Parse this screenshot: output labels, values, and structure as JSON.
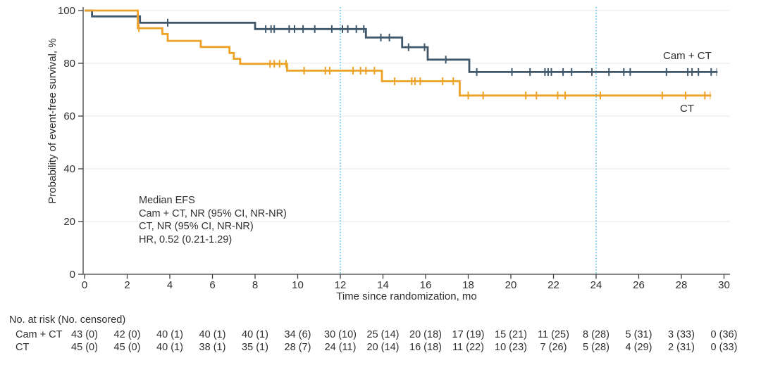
{
  "colors": {
    "cam_ct": "#41586B",
    "ct": "#EDA226",
    "milestone_line": "#4AC0E8",
    "grid": "#E8E8E8",
    "axis": "#3F3F3F",
    "text": "#2F2F2F"
  },
  "chart_data": {
    "type": "line",
    "subtype": "kaplan-meier-step",
    "title": "",
    "xlabel": "Time since randomization, mo",
    "ylabel": "Probability of event-free survival, %",
    "xlim": [
      0,
      30
    ],
    "ylim": [
      0,
      100
    ],
    "xticks": [
      0,
      2,
      4,
      6,
      8,
      10,
      12,
      14,
      16,
      18,
      20,
      22,
      24,
      26,
      28,
      30
    ],
    "yticks": [
      0,
      20,
      40,
      60,
      80,
      100
    ],
    "grid_y": [
      20,
      40,
      60,
      80,
      100
    ],
    "milestone_x": [
      12,
      24
    ],
    "legend_position": "end-of-line labels",
    "series": [
      {
        "name": "Cam + CT",
        "color": "#41586B",
        "steps": [
          [
            0,
            100
          ],
          [
            0.35,
            97.8
          ],
          [
            2.6,
            95.4
          ],
          [
            8.0,
            93.0
          ],
          [
            13.2,
            89.8
          ],
          [
            14.9,
            86.1
          ],
          [
            16.1,
            81.4
          ],
          [
            18.05,
            76.7
          ]
        ],
        "end_t": 29.7,
        "censor_t": [
          3.9,
          8.5,
          8.75,
          8.9,
          9.6,
          9.85,
          10.25,
          10.8,
          11.6,
          12.1,
          12.35,
          12.75,
          13.1,
          13.9,
          14.3,
          15.2,
          15.95,
          16.95,
          18.4,
          20.05,
          20.9,
          21.6,
          21.75,
          21.9,
          22.45,
          22.85,
          23.8,
          24.6,
          25.3,
          25.6,
          27.3,
          28.3,
          28.5,
          28.8,
          29.4
        ],
        "end_censor_t": 29.65
      },
      {
        "name": "CT",
        "color": "#EDA226",
        "steps": [
          [
            0,
            100
          ],
          [
            2.5,
            93.3
          ],
          [
            3.65,
            91.1
          ],
          [
            3.9,
            88.5
          ],
          [
            5.45,
            86.2
          ],
          [
            6.8,
            83.9
          ],
          [
            7.0,
            81.7
          ],
          [
            7.3,
            79.8
          ],
          [
            9.5,
            77.2
          ],
          [
            13.95,
            73.2
          ],
          [
            17.6,
            67.8
          ]
        ],
        "end_t": 29.4,
        "censor_t": [
          2.55,
          8.7,
          8.9,
          9.15,
          9.45,
          10.3,
          11.3,
          11.5,
          12.6,
          12.95,
          13.2,
          13.6,
          14.55,
          15.35,
          15.5,
          15.75,
          16.8,
          17.3,
          18.0,
          18.7,
          20.7,
          21.2,
          22.2,
          22.55,
          24.2,
          27.1,
          28.2,
          29.1
        ],
        "end_censor_t": 29.35
      }
    ],
    "annotation": {
      "lines": [
        "Median EFS",
        "Cam + CT, NR (95% CI, NR-NR)",
        "CT, NR (95% CI, NR-NR)",
        "HR, 0.52 (0.21-1.29)"
      ]
    }
  },
  "risk_table": {
    "header": "No. at risk (No. censored)",
    "times": [
      0,
      2,
      4,
      6,
      8,
      10,
      12,
      14,
      16,
      18,
      20,
      22,
      24,
      26,
      28,
      30
    ],
    "rows": [
      {
        "label": "Cam + CT",
        "values": [
          "43 (0)",
          "42 (0)",
          "40 (1)",
          "40 (1)",
          "40 (1)",
          "34 (6)",
          "30 (10)",
          "25 (14)",
          "20 (18)",
          "17 (19)",
          "15 (21)",
          "11 (25)",
          "8 (28)",
          "5 (31)",
          "3 (33)",
          "0 (36)"
        ]
      },
      {
        "label": "CT",
        "values": [
          "45 (0)",
          "45 (0)",
          "40 (1)",
          "38 (1)",
          "35 (1)",
          "28 (7)",
          "24 (11)",
          "20 (14)",
          "16 (18)",
          "11 (22)",
          "10 (23)",
          "7 (26)",
          "5 (28)",
          "4 (29)",
          "2 (31)",
          "0 (33)"
        ]
      }
    ]
  }
}
